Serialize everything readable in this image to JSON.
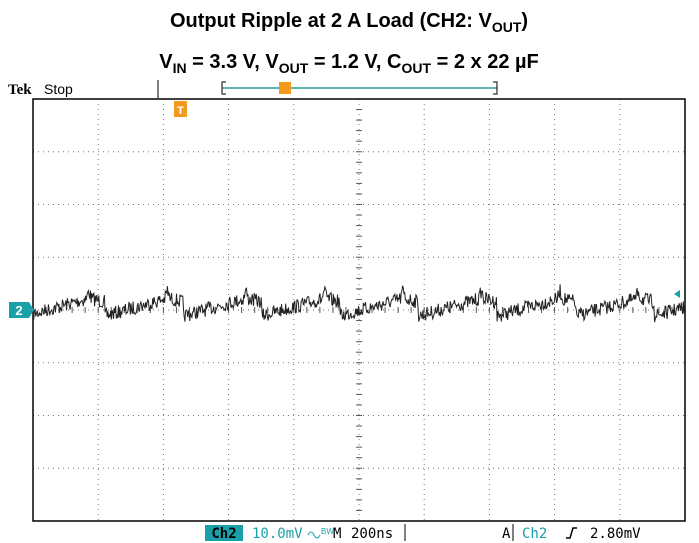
{
  "title": {
    "line1": [
      "Output Ripple at 2 A Load (CH2: V",
      "OUT",
      ")"
    ],
    "line2": [
      "V",
      "IN",
      " = 3.3 V, V",
      "OUT",
      " = 1.2 V, C",
      "OUT",
      " = 2 x 22 µF"
    ]
  },
  "scope": {
    "brand": "Tek",
    "status": "Stop",
    "channel_marker": "2",
    "trigger_marker": "T",
    "footer": {
      "channel": "Ch2",
      "scale": "10.0mV",
      "bw": "BW",
      "timebase_label": "M",
      "timebase": "200ns",
      "trigger_mode": "A",
      "trigger_channel": "Ch2",
      "trigger_level": "2.80mV"
    }
  }
}
